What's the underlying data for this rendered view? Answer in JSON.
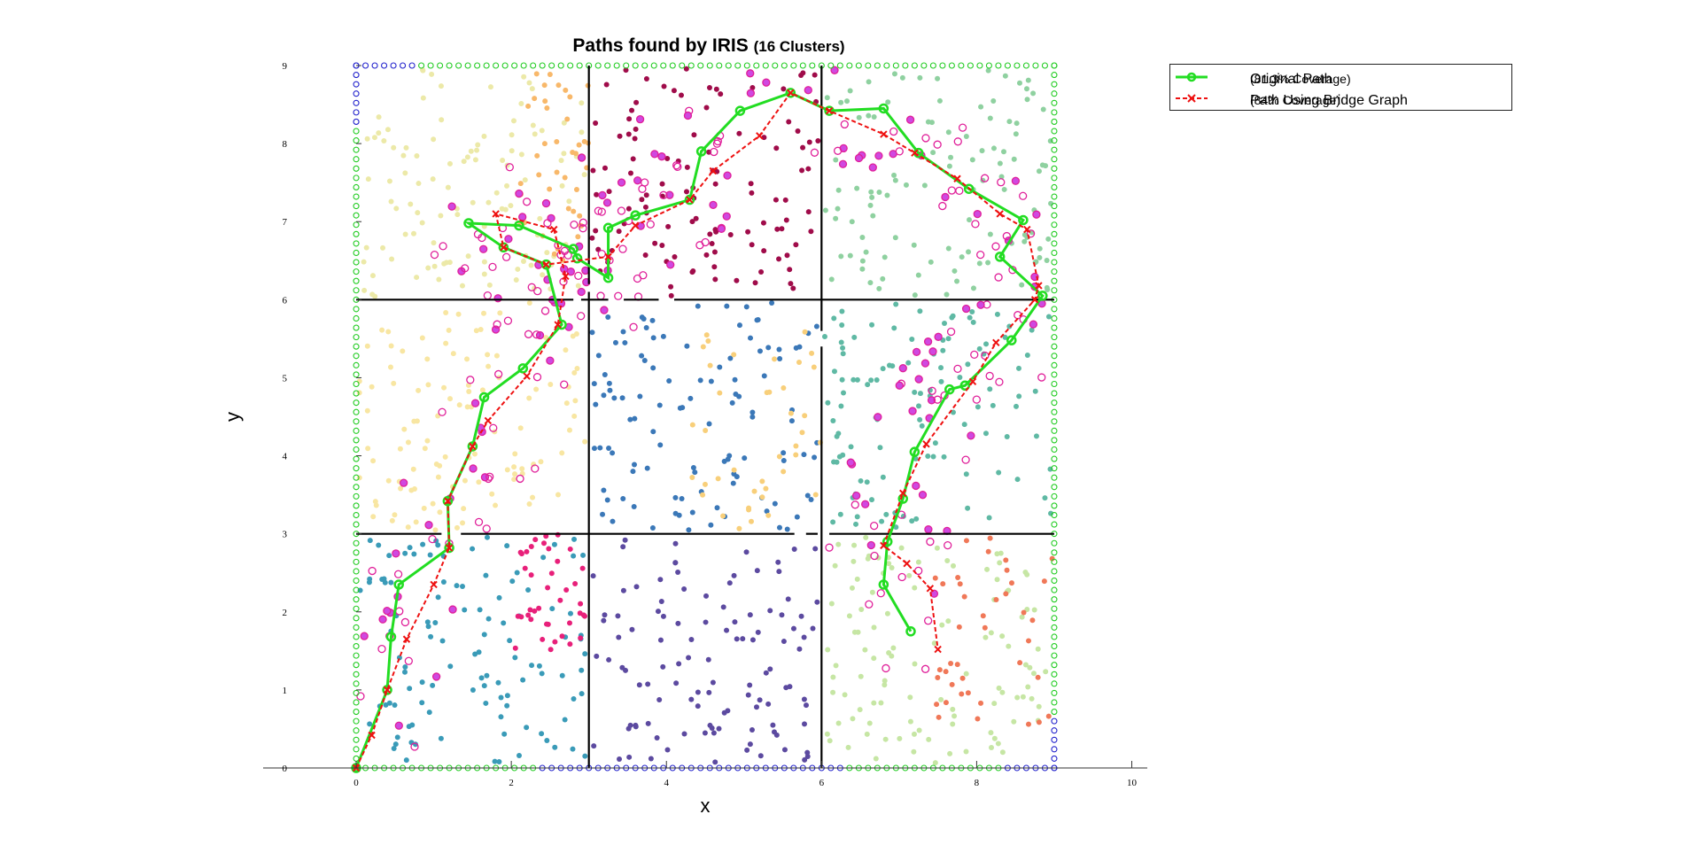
{
  "chart_data": {
    "type": "scatter",
    "title_main": "Paths found by IRIS",
    "title_paren": "(16 Clusters)",
    "xlabel": "x",
    "ylabel": "y",
    "xlim": [
      -1.2,
      10.2
    ],
    "ylim": [
      0,
      9
    ],
    "x_ticks": [
      "0",
      "2",
      "4",
      "6",
      "8",
      "10"
    ],
    "y_ticks": [
      "0",
      "1",
      "2",
      "3",
      "4",
      "5",
      "6",
      "7",
      "8",
      "9"
    ],
    "grid": false,
    "legend_position": "top-right-outside",
    "legend": [
      {
        "main": "Original Path",
        "paren": "(81.3% Coverage)",
        "color": "#22dd22",
        "style": "solid-circle"
      },
      {
        "main": "Path Using Bridge Graph",
        "paren": "(84% Coverage)",
        "color": "#ee1111",
        "style": "dashed-x"
      }
    ],
    "region_size": 9,
    "divider_lines": [
      {
        "x1": 0,
        "y1": 6,
        "x2": 2.8,
        "y2": 6
      },
      {
        "x1": 2.9,
        "y1": 6,
        "x2": 3.25,
        "y2": 6
      },
      {
        "x1": 3.45,
        "y1": 6,
        "x2": 3.9,
        "y2": 6
      },
      {
        "x1": 4.1,
        "y1": 6,
        "x2": 9,
        "y2": 6
      },
      {
        "x1": 0,
        "y1": 3,
        "x2": 1.1,
        "y2": 3
      },
      {
        "x1": 1.35,
        "y1": 3,
        "x2": 5.65,
        "y2": 3
      },
      {
        "x1": 5.8,
        "y1": 3,
        "x2": 5.95,
        "y2": 3
      },
      {
        "x1": 6.1,
        "y1": 3,
        "x2": 9,
        "y2": 3
      },
      {
        "x1": 3,
        "y1": 0,
        "x2": 3,
        "y2": 6.1
      },
      {
        "x1": 3,
        "y1": 6.2,
        "x2": 3,
        "y2": 9
      },
      {
        "x1": 6,
        "y1": 0,
        "x2": 6,
        "y2": 5.4
      },
      {
        "x1": 6,
        "y1": 5.6,
        "x2": 6,
        "y2": 9
      }
    ],
    "clusters": [
      {
        "x0": 0,
        "y0": 6,
        "color": "#ece9a8",
        "seed": 11
      },
      {
        "x0": 3,
        "y0": 6,
        "color": "#a00c4a",
        "seed": 12
      },
      {
        "x0": 6,
        "y0": 6,
        "color": "#8fd1a0",
        "seed": 13
      },
      {
        "x0": 0,
        "y0": 3,
        "color": "#f8e6a2",
        "seed": 21
      },
      {
        "x0": 3,
        "y0": 3,
        "color": "#3b78b8",
        "seed": 22
      },
      {
        "x0": 6,
        "y0": 3,
        "color": "#5fb9a4",
        "seed": 23
      },
      {
        "x0": 0,
        "y0": 0,
        "color": "#3a9bb8",
        "seed": 31
      },
      {
        "x0": 3,
        "y0": 0,
        "color": "#5c4aa0",
        "seed": 32
      },
      {
        "x0": 6,
        "y0": 0,
        "color": "#c6e6a4",
        "seed": 33
      }
    ],
    "sub_clusters": [
      {
        "x0": 2.1,
        "y0": 6.5,
        "w": 0.9,
        "h": 2.4,
        "color": "#f8b86a",
        "seed": 41
      },
      {
        "x0": 4.3,
        "y0": 3.0,
        "w": 1.7,
        "h": 2.6,
        "color": "#f8cf7a",
        "seed": 42
      },
      {
        "x0": 7.4,
        "y0": 0.5,
        "w": 1.6,
        "h": 2.5,
        "color": "#f07858",
        "seed": 43
      },
      {
        "x0": 2.0,
        "y0": 1.5,
        "w": 1.0,
        "h": 1.5,
        "color": "#e8207a",
        "seed": 44
      }
    ],
    "original_path": [
      [
        0.0,
        0.0
      ],
      [
        0.4,
        1.0
      ],
      [
        0.45,
        1.68
      ],
      [
        0.55,
        2.35
      ],
      [
        1.2,
        2.82
      ],
      [
        1.18,
        3.42
      ],
      [
        1.5,
        4.12
      ],
      [
        1.65,
        4.75
      ],
      [
        2.15,
        5.12
      ],
      [
        2.65,
        5.68
      ],
      [
        2.45,
        6.45
      ],
      [
        1.9,
        6.67
      ],
      [
        1.45,
        6.98
      ],
      [
        2.1,
        6.95
      ],
      [
        2.8,
        6.65
      ],
      [
        2.85,
        6.53
      ],
      [
        3.25,
        6.28
      ],
      [
        3.25,
        6.92
      ],
      [
        3.6,
        7.08
      ],
      [
        4.3,
        7.28
      ],
      [
        4.45,
        7.9
      ],
      [
        4.95,
        8.42
      ],
      [
        5.6,
        8.65
      ],
      [
        6.1,
        8.42
      ],
      [
        6.8,
        8.45
      ],
      [
        7.25,
        7.88
      ],
      [
        7.9,
        7.42
      ],
      [
        8.6,
        7.02
      ],
      [
        8.3,
        6.55
      ],
      [
        8.85,
        6.05
      ],
      [
        8.45,
        5.48
      ],
      [
        7.85,
        4.9
      ],
      [
        7.65,
        4.85
      ],
      [
        7.2,
        4.05
      ],
      [
        7.05,
        3.45
      ],
      [
        6.85,
        2.9
      ],
      [
        6.8,
        2.35
      ],
      [
        7.15,
        1.75
      ]
    ],
    "bridge_path": [
      [
        0.0,
        0.0
      ],
      [
        0.2,
        0.42
      ],
      [
        0.4,
        1.0
      ],
      [
        0.65,
        1.65
      ],
      [
        1.0,
        2.35
      ],
      [
        1.2,
        2.82
      ],
      [
        1.18,
        3.42
      ],
      [
        1.5,
        4.12
      ],
      [
        1.7,
        4.45
      ],
      [
        2.2,
        5.02
      ],
      [
        2.6,
        5.68
      ],
      [
        2.7,
        6.3
      ],
      [
        2.55,
        6.9
      ],
      [
        1.8,
        7.1
      ],
      [
        1.9,
        6.67
      ],
      [
        2.45,
        6.45
      ],
      [
        3.25,
        6.55
      ],
      [
        3.6,
        6.95
      ],
      [
        4.3,
        7.28
      ],
      [
        4.6,
        7.65
      ],
      [
        5.2,
        8.1
      ],
      [
        5.6,
        8.65
      ],
      [
        6.1,
        8.42
      ],
      [
        6.8,
        8.12
      ],
      [
        7.2,
        7.88
      ],
      [
        7.75,
        7.55
      ],
      [
        8.3,
        7.1
      ],
      [
        8.65,
        6.9
      ],
      [
        8.8,
        6.18
      ],
      [
        8.75,
        6.0
      ],
      [
        8.25,
        5.45
      ],
      [
        7.95,
        4.95
      ],
      [
        7.35,
        4.15
      ],
      [
        7.05,
        3.52
      ],
      [
        6.8,
        2.85
      ],
      [
        7.1,
        2.62
      ],
      [
        7.4,
        2.3
      ],
      [
        7.5,
        1.52
      ]
    ]
  }
}
